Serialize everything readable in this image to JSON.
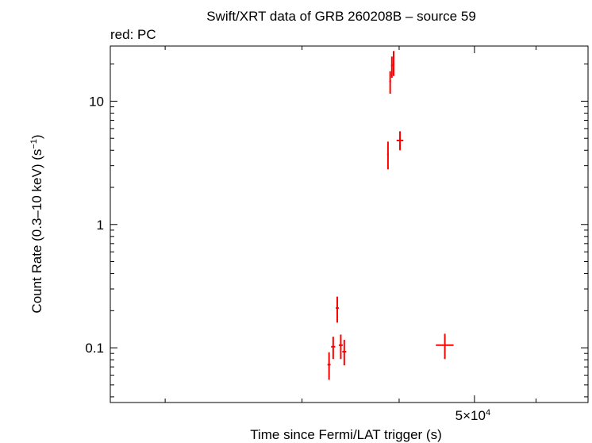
{
  "chart_data": {
    "type": "scatter",
    "title": "Swift/XRT data of GRB 260208B – source 59",
    "subtitle": "red: PC",
    "xlabel": "Time since Fermi/LAT trigger (s)",
    "ylabel": "Count Rate (0.3–10 keV) (s",
    "ylabel_sup": "−1",
    "ylabel_end": ")",
    "x_scale": "log",
    "y_scale": "log",
    "xlim": [
      17000,
      70000
    ],
    "ylim": [
      0.036,
      28
    ],
    "x_tick_labels": [
      {
        "value": 50000,
        "label": "5×10",
        "sup": "4"
      }
    ],
    "y_tick_labels": [
      {
        "value": 0.1,
        "label": "0.1"
      },
      {
        "value": 1,
        "label": "1"
      },
      {
        "value": 10,
        "label": "10"
      }
    ],
    "series": [
      {
        "color": "#ff0000",
        "points": [
          {
            "x": 32500,
            "xlo": 32350,
            "xhi": 32650,
            "y": 0.073,
            "ylo": 0.055,
            "yhi": 0.092
          },
          {
            "x": 32900,
            "xlo": 32700,
            "xhi": 33100,
            "y": 0.102,
            "ylo": 0.081,
            "yhi": 0.123
          },
          {
            "x": 33300,
            "xlo": 33150,
            "xhi": 33450,
            "y": 0.21,
            "ylo": 0.16,
            "yhi": 0.26
          },
          {
            "x": 33650,
            "xlo": 33450,
            "xhi": 33850,
            "y": 0.105,
            "ylo": 0.081,
            "yhi": 0.128
          },
          {
            "x": 34000,
            "xlo": 33800,
            "xhi": 34200,
            "y": 0.093,
            "ylo": 0.072,
            "yhi": 0.116
          },
          {
            "x": 38700,
            "xlo": 38600,
            "xhi": 38800,
            "y": 3.7,
            "ylo": 2.8,
            "yhi": 4.7
          },
          {
            "x": 38950,
            "xlo": 38850,
            "xhi": 39050,
            "y": 14.5,
            "ylo": 11.5,
            "yhi": 17.5
          },
          {
            "x": 39150,
            "xlo": 39050,
            "xhi": 39250,
            "y": 19.5,
            "ylo": 15.5,
            "yhi": 23
          },
          {
            "x": 39350,
            "xlo": 39250,
            "xhi": 39450,
            "y": 20,
            "ylo": 16,
            "yhi": 25.5
          },
          {
            "x": 40100,
            "xlo": 39700,
            "xhi": 40500,
            "y": 4.8,
            "ylo": 4.0,
            "yhi": 5.7
          },
          {
            "x": 45800,
            "xlo": 44600,
            "xhi": 47000,
            "y": 0.105,
            "ylo": 0.081,
            "yhi": 0.13
          }
        ]
      }
    ],
    "grid": false
  }
}
